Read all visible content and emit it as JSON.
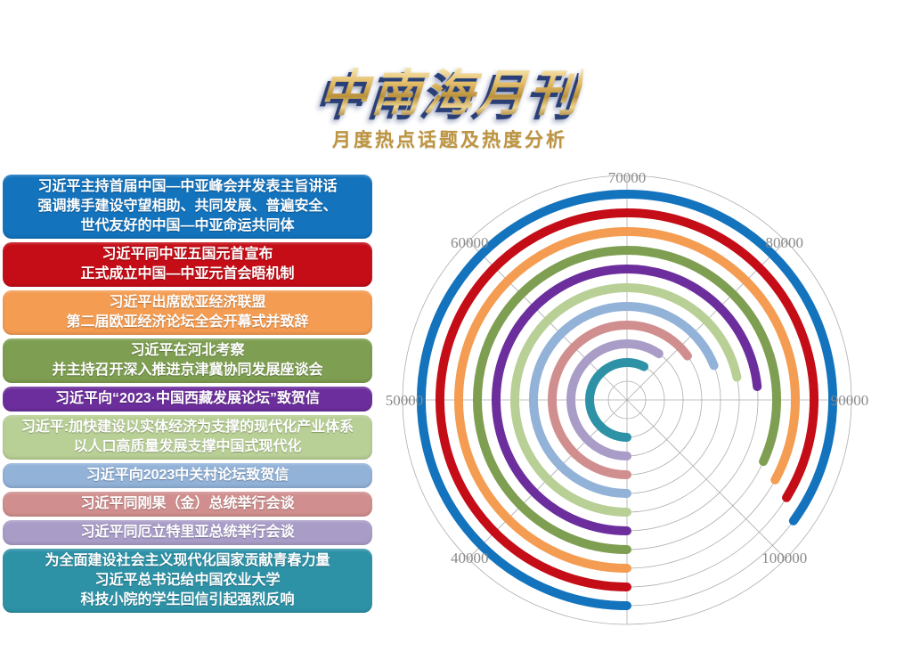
{
  "page": {
    "title": "中南海月刊",
    "subtitle": "月度热点话题及热度分析"
  },
  "topics": [
    {
      "lines": [
        "习近平主持首届中国—中亚峰会并发表主旨讲话",
        "强调携手建设守望相助、共同发展、普遍安全、",
        "世代友好的中国—中亚命运共同体"
      ],
      "color": "#1373bd",
      "value": 98000
    },
    {
      "lines": [
        "习近平同中亚五国元首宣布",
        "正式成立中国—中亚元首会晤机制"
      ],
      "color": "#c40d17",
      "value": 97000
    },
    {
      "lines": [
        "习近平出席欧亚经济联盟",
        "第二届欧亚经济论坛全会开幕式并致辞"
      ],
      "color": "#f49c52",
      "value": 96300
    },
    {
      "lines": [
        "习近平在河北考察",
        "并主持召开深入推进京津冀协同发展座谈会"
      ],
      "color": "#7e9e51",
      "value": 95400
    },
    {
      "lines": [
        "习近平向“2023·中国西藏发展论坛”致贺信"
      ],
      "color": "#6c2e9c",
      "value": 88700
    },
    {
      "lines": [
        "习近平:加快建设以实体经济为支撑的现代化产业体系",
        "以人口高质量发展支撑中国式现代化"
      ],
      "color": "#b8cf95",
      "value": 87400
    },
    {
      "lines": [
        "习近平向2023中关村论坛致贺信"
      ],
      "color": "#92b2d8",
      "value": 85200
    },
    {
      "lines": [
        "习近平同刚果（金）总统举行会谈"
      ],
      "color": "#d08f8e",
      "value": 82000
    },
    {
      "lines": [
        "习近平同厄立特里亚总统举行会谈"
      ],
      "color": "#a99dc8",
      "value": 77700
    },
    {
      "lines": [
        "为全面建设社会主义现代化国家贡献青春力量",
        "习近平总书记给中国农业大学",
        "科技小院的学生回信引起强烈反响"
      ],
      "color": "#2e92a7",
      "value": 76000
    }
  ],
  "chart_data": {
    "type": "bar",
    "variant": "polar_radial_bars",
    "title": "月度热点话题及热度分析",
    "categories": [
      "习近平主持首届中国—中亚峰会并发表主旨讲话 强调携手建设守望相助、共同发展、普遍安全、世代友好的中国—中亚命运共同体",
      "习近平同中亚五国元首宣布 正式成立中国—中亚元首会晤机制",
      "习近平出席欧亚经济联盟 第二届欧亚经济论坛全会开幕式并致辞",
      "习近平在河北考察 并主持召开深入推进京津冀协同发展座谈会",
      "习近平向“2023·中国西藏发展论坛”致贺信",
      "习近平:加快建设以实体经济为支撑的现代化产业体系 以人口高质量发展支撑中国式现代化",
      "习近平向2023中关村论坛致贺信",
      "习近平同刚果（金）总统举行会谈",
      "习近平同厄立特里亚总统举行会谈",
      "为全面建设社会主义现代化国家贡献青春力量 习近平总书记给中国农业大学 科技小院的学生回信引起强烈反响"
    ],
    "values": [
      98000,
      97000,
      96300,
      95400,
      88700,
      87400,
      85200,
      82000,
      77700,
      76000
    ],
    "colors": [
      "#1373bd",
      "#c40d17",
      "#f49c52",
      "#7e9e51",
      "#6c2e9c",
      "#b8cf95",
      "#92b2d8",
      "#d08f8e",
      "#a99dc8",
      "#2e92a7"
    ],
    "angular_axis": {
      "start_value_at_bottom": 30000,
      "value_per_45_deg": 10000,
      "direction": "clockwise",
      "range": [
        30000,
        110000
      ],
      "ticks": [
        40000,
        50000,
        60000,
        70000,
        80000,
        90000,
        100000
      ],
      "tick_labels": [
        "40000",
        "50000",
        "60000",
        "70000",
        "80000",
        "90000",
        "100000"
      ]
    },
    "radial_order": "first topic outermost ring, last topic innermost ring",
    "grid": {
      "concentric_circles": 12,
      "spokes": 8,
      "grid_color": "#adadad",
      "label_color": "#8a8a8a"
    },
    "legend_position": "none"
  }
}
